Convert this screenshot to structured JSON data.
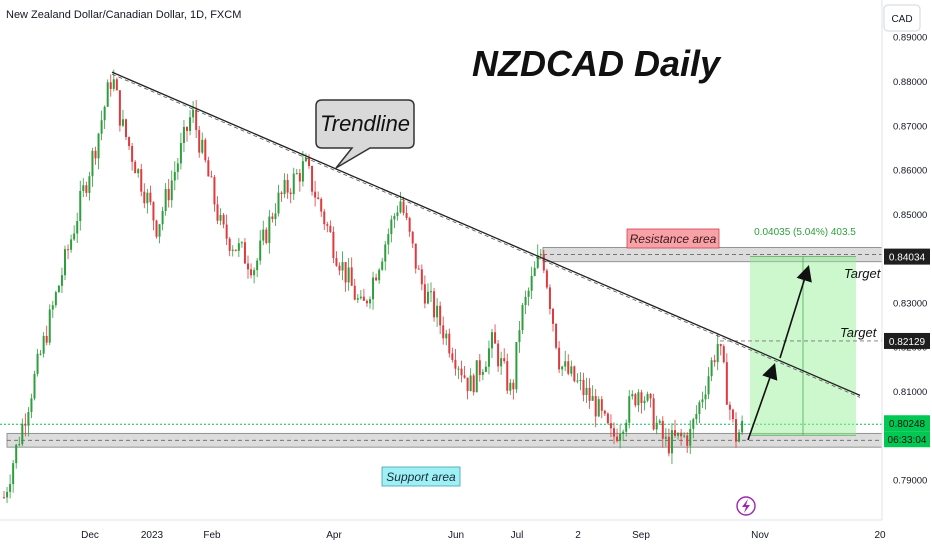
{
  "header": {
    "symbol_title": "New Zealand Dollar/Canadian Dollar, 1D, FXCM",
    "currency_button": "CAD"
  },
  "chart_data": {
    "type": "candlestick",
    "title": "NZDCAD Daily",
    "y_axis": {
      "ticks": [
        "0.79000",
        "0.80000",
        "0.81000",
        "0.82000",
        "0.83000",
        "0.84000",
        "0.85000",
        "0.86000",
        "0.87000",
        "0.88000",
        "0.89000"
      ],
      "range": [
        0.7825,
        0.8915
      ],
      "grid": false
    },
    "x_axis": {
      "ticks": [
        "Dec",
        "2023",
        "Feb",
        "Apr",
        "Jun",
        "Jul",
        "2",
        "Sep",
        "Nov",
        "20"
      ]
    },
    "colors": {
      "up": "#2e9e3e",
      "down": "#e03a3e",
      "trendline": "#222222",
      "zone_fill": "#d9d9d9",
      "zone_border": "#888888",
      "projection": "#90ee90",
      "current_price": "#00c853"
    },
    "path_keypoints": [
      {
        "date": "Nov 2022 start",
        "price": 0.786
      },
      {
        "date": "Nov 2022",
        "price": 0.795
      },
      {
        "date": "Nov 2022 late",
        "price": 0.835
      },
      {
        "date": "Dec 2022",
        "price": 0.865
      },
      {
        "date": "Dec 2022 peak",
        "price": 0.8815
      },
      {
        "date": "Dec 2022 late",
        "price": 0.87
      },
      {
        "date": "Jan 2023",
        "price": 0.847
      },
      {
        "date": "Jan 2023 mid",
        "price": 0.862
      },
      {
        "date": "Feb 2023",
        "price": 0.873
      },
      {
        "date": "Feb 2023 late",
        "price": 0.846
      },
      {
        "date": "Mar 2023",
        "price": 0.838
      },
      {
        "date": "Mar 2023 mid",
        "price": 0.852
      },
      {
        "date": "Apr 2023",
        "price": 0.861
      },
      {
        "date": "Apr 2023 mid",
        "price": 0.842
      },
      {
        "date": "Apr 2023 late",
        "price": 0.828
      },
      {
        "date": "May 2023",
        "price": 0.8535
      },
      {
        "date": "May 2023 late",
        "price": 0.835
      },
      {
        "date": "Jun 2023",
        "price": 0.811
      },
      {
        "date": "Jun 2023 mid",
        "price": 0.821
      },
      {
        "date": "Jun 2023 late",
        "price": 0.809
      },
      {
        "date": "Jul 2023",
        "price": 0.826
      },
      {
        "date": "Jul 2023 peak",
        "price": 0.842
      },
      {
        "date": "Jul 2023 late",
        "price": 0.816
      },
      {
        "date": "Aug 2023",
        "price": 0.807
      },
      {
        "date": "Aug 2023 late",
        "price": 0.799
      },
      {
        "date": "Sep 2023",
        "price": 0.811
      },
      {
        "date": "Sep 2023 mid",
        "price": 0.798
      },
      {
        "date": "Sep 2023 late",
        "price": 0.8
      },
      {
        "date": "Oct 2023 peak",
        "price": 0.821
      },
      {
        "date": "Oct 2023 low",
        "price": 0.7995
      },
      {
        "date": "Oct 2023 last",
        "price": 0.8025
      }
    ],
    "trendline": {
      "from": {
        "date": "Dec 2022",
        "price": 0.882
      },
      "to": {
        "date": "Dec 2023",
        "price": 0.809
      }
    },
    "zones": {
      "resistance": {
        "top": 0.8424,
        "bottom": 0.8392,
        "label": "Resistance area"
      },
      "support": {
        "top": 0.8004,
        "bottom": 0.7973,
        "label": "Support area"
      }
    },
    "projection": {
      "from_price": 0.8,
      "to_price": 0.84034,
      "measure_label": "0.04035 (5.04%) 403.5"
    },
    "annotations": {
      "trendline_callout": "Trendline",
      "target_label_1": "Target",
      "target_label_2": "Target"
    },
    "price_tags": {
      "target_upper": "0.84034",
      "target_lower": "0.82129",
      "current_price": "0.80248",
      "countdown": "06:33:04"
    }
  }
}
